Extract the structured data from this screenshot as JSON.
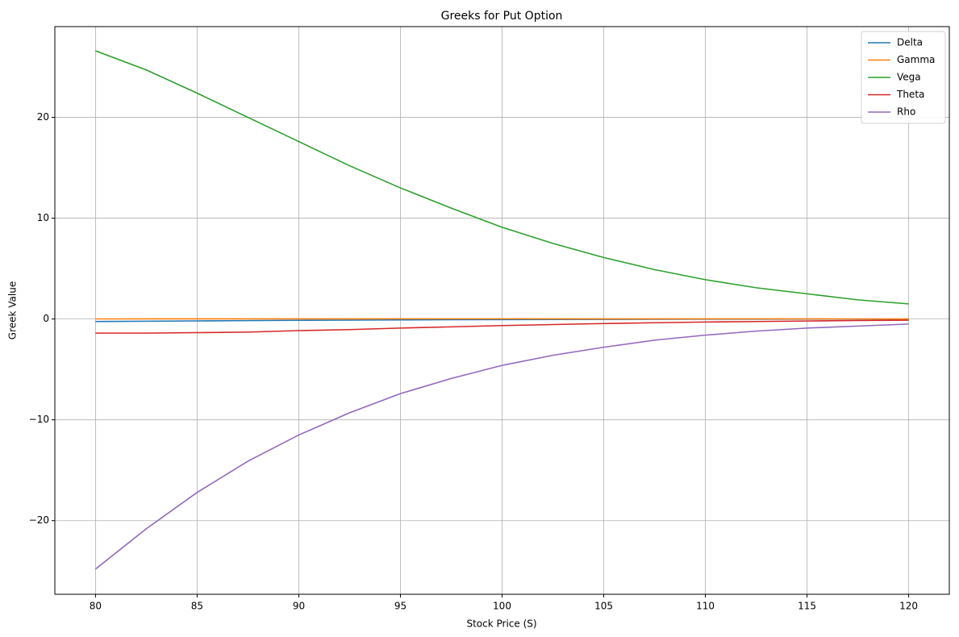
{
  "chart_data": {
    "type": "line",
    "title": "Greeks for Put Option",
    "x_label": "Stock Price (S)",
    "y_label": "Greek Value",
    "x": [
      80,
      82.5,
      85,
      87.5,
      90,
      92.5,
      95,
      97.5,
      100,
      102.5,
      105,
      107.5,
      110,
      112.5,
      115,
      117.5,
      120
    ],
    "series": [
      {
        "name": "Delta",
        "color": "#1f77b4",
        "values": [
          -0.25,
          -0.22,
          -0.19,
          -0.16,
          -0.13,
          -0.11,
          -0.09,
          -0.07,
          -0.06,
          -0.05,
          -0.04,
          -0.03,
          -0.02,
          -0.02,
          -0.01,
          -0.01,
          -0.01
        ]
      },
      {
        "name": "Gamma",
        "color": "#ff7f0e",
        "values": [
          0.01,
          0.012,
          0.014,
          0.016,
          0.018,
          0.019,
          0.02,
          0.02,
          0.02,
          0.019,
          0.018,
          0.016,
          0.015,
          0.013,
          0.012,
          0.01,
          0.009
        ]
      },
      {
        "name": "Vega",
        "color": "#2ca02c",
        "values": [
          26.6,
          24.7,
          22.4,
          20.0,
          17.6,
          15.2,
          13.0,
          11.0,
          9.1,
          7.5,
          6.1,
          4.9,
          3.9,
          3.1,
          2.5,
          1.9,
          1.5
        ]
      },
      {
        "name": "Theta",
        "color": "#d62728",
        "values": [
          -1.4,
          -1.4,
          -1.35,
          -1.3,
          -1.15,
          -1.05,
          -0.9,
          -0.78,
          -0.65,
          -0.55,
          -0.45,
          -0.37,
          -0.3,
          -0.25,
          -0.2,
          -0.15,
          -0.12
        ]
      },
      {
        "name": "Rho",
        "color": "#9467bd",
        "values": [
          -24.8,
          -20.8,
          -17.2,
          -14.1,
          -11.5,
          -9.3,
          -7.4,
          -5.9,
          -4.6,
          -3.6,
          -2.8,
          -2.1,
          -1.6,
          -1.2,
          -0.9,
          -0.7,
          -0.5
        ]
      }
    ],
    "xlim": [
      78,
      122
    ],
    "ylim": [
      -27.3,
      29.0
    ],
    "xticks": [
      80,
      85,
      90,
      95,
      100,
      105,
      110,
      115,
      120
    ],
    "yticks": [
      {
        "value": -20,
        "label": "−20"
      },
      {
        "value": -10,
        "label": "−10"
      },
      0,
      10,
      20
    ],
    "grid": true,
    "legend": "upper right"
  }
}
